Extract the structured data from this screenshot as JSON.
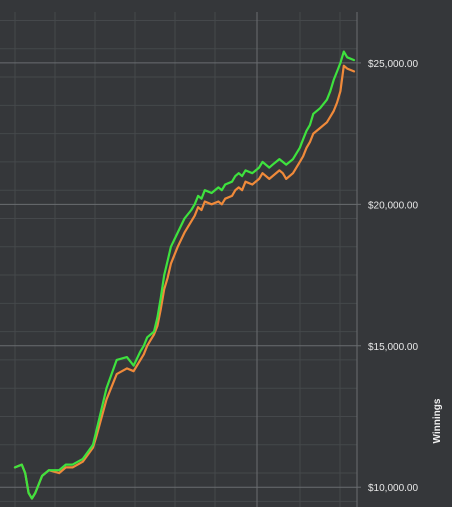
{
  "colors": {
    "background": "#35373a",
    "grid_major": "#6a6d70",
    "grid_minor": "#45484b",
    "series_green": "#3ee23e",
    "series_orange": "#f08a3a"
  },
  "chart_data": {
    "type": "line",
    "ylabel": "Winnings",
    "yaxis_side": "right",
    "ylim": [
      9300,
      26800
    ],
    "yticks": [
      10000,
      15000,
      20000,
      25000
    ],
    "ytick_labels": [
      "$10,000.00",
      "$15,000.00",
      "$20,000.00",
      "$25,000.00"
    ],
    "grid": true,
    "series": [
      {
        "color": "#3ee23e",
        "x": [
          0,
          2,
          3,
          4,
          5,
          6,
          7,
          8,
          10,
          13,
          15,
          17,
          20,
          23,
          24,
          27,
          30,
          33,
          35,
          37,
          38,
          39,
          40,
          41,
          42,
          43,
          44,
          45,
          46,
          48,
          50,
          52,
          53,
          54,
          55,
          56,
          58,
          60,
          61,
          62,
          64,
          65,
          66,
          67,
          68,
          70,
          72,
          73,
          75,
          76,
          78,
          79,
          80,
          82,
          83,
          84,
          85,
          86,
          87,
          88,
          90,
          92,
          93,
          94,
          95,
          96,
          97,
          98,
          100
        ],
        "y": [
          10700,
          10800,
          10500,
          9800,
          9600,
          9800,
          10100,
          10400,
          10600,
          10600,
          10800,
          10800,
          11000,
          11500,
          12000,
          13500,
          14500,
          14600,
          14300,
          14800,
          15000,
          15300,
          15400,
          15500,
          16000,
          16700,
          17500,
          18000,
          18500,
          19000,
          19500,
          19800,
          20000,
          20300,
          20200,
          20500,
          20400,
          20600,
          20500,
          20700,
          20800,
          21000,
          21100,
          21000,
          21200,
          21100,
          21300,
          21500,
          21300,
          21400,
          21600,
          21500,
          21400,
          21600,
          21800,
          22000,
          22300,
          22600,
          22800,
          23200,
          23400,
          23700,
          24000,
          24400,
          24700,
          25000,
          25400,
          25200,
          25100
        ]
      },
      {
        "color": "#f08a3a",
        "x": [
          0,
          2,
          3,
          4,
          5,
          6,
          7,
          8,
          10,
          13,
          15,
          17,
          20,
          23,
          24,
          27,
          30,
          33,
          35,
          37,
          38,
          39,
          40,
          41,
          42,
          43,
          44,
          45,
          46,
          48,
          50,
          52,
          53,
          54,
          55,
          56,
          58,
          60,
          61,
          62,
          64,
          65,
          66,
          67,
          68,
          70,
          72,
          73,
          75,
          76,
          78,
          79,
          80,
          82,
          83,
          84,
          85,
          86,
          87,
          88,
          90,
          92,
          93,
          94,
          95,
          96,
          97,
          98,
          100
        ],
        "y": [
          10700,
          10800,
          10500,
          9800,
          9600,
          9800,
          10100,
          10400,
          10600,
          10500,
          10700,
          10700,
          10900,
          11400,
          11800,
          13100,
          14000,
          14200,
          14100,
          14500,
          14700,
          15000,
          15200,
          15400,
          15700,
          16300,
          17000,
          17400,
          17900,
          18500,
          19000,
          19400,
          19600,
          19900,
          19800,
          20100,
          20000,
          20100,
          20000,
          20200,
          20300,
          20500,
          20600,
          20500,
          20800,
          20700,
          20900,
          21100,
          20900,
          21000,
          21200,
          21100,
          20900,
          21100,
          21300,
          21500,
          21700,
          22000,
          22200,
          22500,
          22700,
          22900,
          23100,
          23300,
          23600,
          24000,
          24900,
          24800,
          24700
        ]
      }
    ]
  }
}
